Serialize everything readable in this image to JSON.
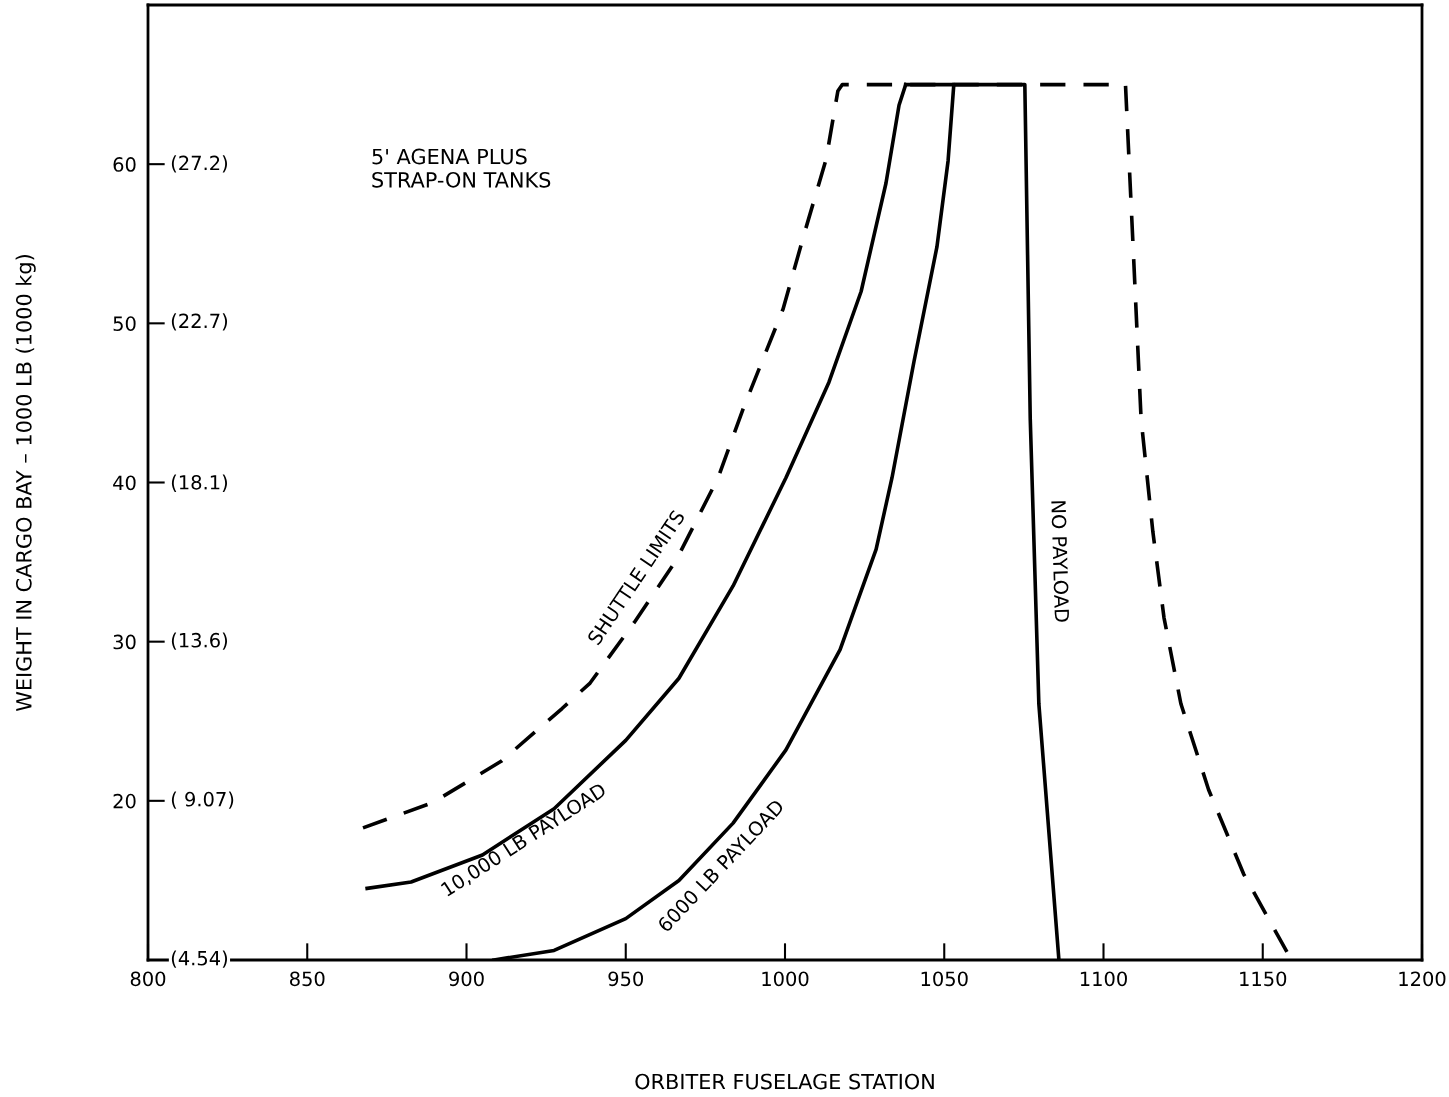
{
  "chart_data": {
    "type": "line",
    "xlabel": "ORBITER FUSELAGE STATION",
    "ylabel": "WEIGHT IN CARGO BAY – 1000 LB (1000 kg)",
    "xlim": [
      800,
      1200
    ],
    "xticks": [
      800,
      850,
      900,
      950,
      1000,
      1050,
      1100,
      1150,
      1200
    ],
    "ylim": [
      10,
      70
    ],
    "yticks": [
      20,
      30,
      40,
      50,
      60
    ],
    "y2lim": [
      4.536,
      31.75
    ],
    "y2ticks": [
      {
        "value": 4.54,
        "label": "(4.54)"
      },
      {
        "value": 9.07,
        "label": "( 9.07)"
      },
      {
        "value": 13.6,
        "label": "(13.6)"
      },
      {
        "value": 18.1,
        "label": "(18.1)"
      },
      {
        "value": 22.7,
        "label": "(22.7)"
      },
      {
        "value": 27.2,
        "label": "(27.2)"
      }
    ],
    "grid": false,
    "legend": false,
    "marker": "none",
    "annotations": [
      "5' AGENA PLUS\nSTRAP-ON TANKS"
    ],
    "series": [
      {
        "name": "SHUTTLE LIMITS",
        "color": "#000000",
        "line_style": "dashed",
        "x": [
          867.5,
          889.5,
          911,
          930,
          938.8,
          953,
          965.8,
          979,
          986.8,
          999.4,
          1006,
          1012.9,
          1016.6,
          1018,
          1106.9,
          1109.3,
          1111.8,
          1115.5,
          1119,
          1124.3,
          1133,
          1144,
          1159
        ],
        "values": [
          18.3,
          19.9,
          22.5,
          25.8,
          27.4,
          31.3,
          35.1,
          40.3,
          44.6,
          50.9,
          55.6,
          60.3,
          64.6,
          65,
          65,
          54.8,
          44,
          36.9,
          31.5,
          26.1,
          20.7,
          15.4,
          10
        ]
      },
      {
        "name": "10,000 LB PAYLOAD",
        "color": "#000000",
        "line_style": "solid",
        "x": [
          868.8,
          882.6,
          905,
          927.5,
          950,
          966.7,
          983.7,
          1000.3,
          1013.8,
          1023.9,
          1031.7,
          1035.8,
          1037.9
        ],
        "values": [
          14.5,
          14.9,
          16.6,
          19.5,
          23.8,
          27.7,
          33.5,
          40.3,
          46.3,
          52,
          58.8,
          63.7,
          65
        ]
      },
      {
        "name": "6000 LB PAYLOAD",
        "color": "#000000",
        "line_style": "solid",
        "x": [
          908.6,
          927.5,
          950,
          966.7,
          983.7,
          1000.3,
          1017.3,
          1028.6,
          1033.6,
          1040.5,
          1047.7,
          1051.2,
          1053
        ],
        "values": [
          10,
          10.6,
          12.6,
          15,
          18.6,
          23.2,
          29.5,
          35.8,
          40.3,
          47.6,
          54.8,
          60.2,
          65
        ]
      },
      {
        "name": "NO PAYLOAD",
        "color": "#000000",
        "line_style": "solid",
        "x": [
          1037.9,
          1075.3,
          1077,
          1079.7,
          1086
        ],
        "values": [
          65,
          65,
          44,
          26.1,
          10
        ]
      }
    ]
  }
}
